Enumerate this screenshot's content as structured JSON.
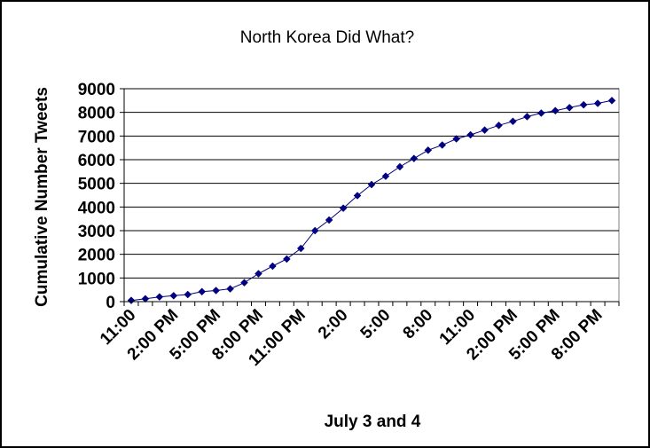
{
  "chart_data": {
    "type": "line",
    "title": "North Korea Did What?",
    "xlabel": "July 3 and 4",
    "ylabel": "Cumulative Number Tweets",
    "ylim": [
      0,
      9000
    ],
    "yticks": [
      0,
      1000,
      2000,
      3000,
      4000,
      5000,
      6000,
      7000,
      8000,
      9000
    ],
    "xtick_labels": [
      "11:00",
      "2:00 PM",
      "5:00 PM",
      "8:00 PM",
      "11:00 PM",
      "2:00",
      "5:00",
      "8:00",
      "11:00",
      "2:00 PM",
      "5:00 PM",
      "8:00 PM"
    ],
    "xtick_every": 3,
    "grid": "horizontal",
    "legend": "none",
    "series": [
      {
        "color": "#000080",
        "values": [
          50,
          120,
          200,
          250,
          300,
          420,
          470,
          540,
          800,
          1180,
          1500,
          1800,
          2250,
          3000,
          3450,
          3950,
          4480,
          4950,
          5300,
          5700,
          6050,
          6400,
          6620,
          6880,
          7050,
          7250,
          7450,
          7620,
          7820,
          7970,
          8070,
          8200,
          8320,
          8380,
          8500
        ]
      }
    ]
  }
}
